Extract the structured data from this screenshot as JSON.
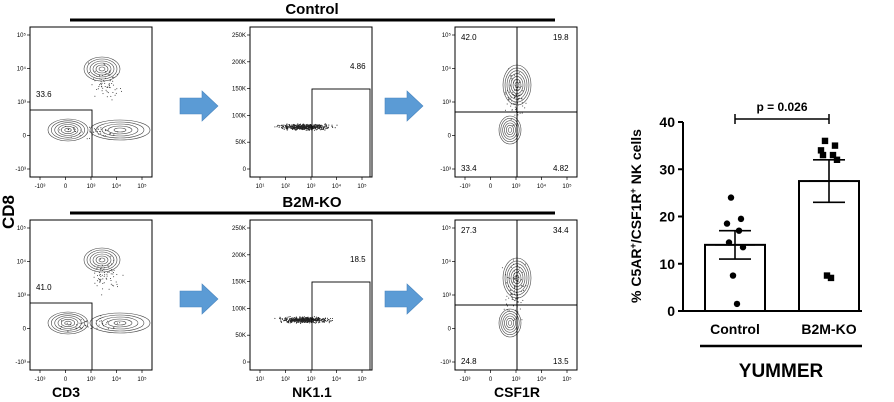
{
  "figure": {
    "y_axis_marker": "CD8",
    "rows": [
      {
        "group_label": "Control",
        "panels": [
          {
            "name": "cd3-cd8-plot",
            "gate_value": "33.6",
            "x_ticks": [
              "-10³",
              "0",
              "10³",
              "10⁴",
              "10⁵"
            ],
            "y_ticks": [
              "10⁵",
              "10⁴",
              "10³",
              "0",
              "-10³"
            ]
          },
          {
            "name": "nk11-plot",
            "gate_value": "4.86",
            "x_ticks": [
              "10¹",
              "10²",
              "10³",
              "10⁴",
              "10⁵"
            ],
            "y_ticks": [
              "250K",
              "200K",
              "150K",
              "100K",
              "50K",
              "0"
            ]
          },
          {
            "name": "csf1r-c5ar-plot",
            "quadrants": {
              "tl": "42.0",
              "tr": "19.8",
              "bl": "33.4",
              "br": "4.82"
            },
            "x_ticks": [
              "-10³",
              "0",
              "10³",
              "10⁴",
              "10⁵"
            ],
            "y_ticks": [
              "10⁵",
              "10⁴",
              "10³",
              "0",
              "-10³"
            ]
          }
        ]
      },
      {
        "group_label": "B2M-KO",
        "panels": [
          {
            "name": "cd3-cd8-plot",
            "gate_value": "41.0",
            "x_ticks": [
              "-10³",
              "0",
              "10³",
              "10⁴",
              "10⁵"
            ],
            "y_ticks": [
              "10⁵",
              "10⁴",
              "10³",
              "0",
              "-10³"
            ]
          },
          {
            "name": "nk11-plot",
            "gate_value": "18.5",
            "x_ticks": [
              "10¹",
              "10²",
              "10³",
              "10⁴",
              "10⁵"
            ],
            "y_ticks": [
              "250K",
              "200K",
              "150K",
              "100K",
              "50K",
              "0"
            ]
          },
          {
            "name": "csf1r-c5ar-plot",
            "quadrants": {
              "tl": "27.3",
              "tr": "34.4",
              "bl": "24.8",
              "br": "13.5"
            },
            "x_ticks": [
              "-10³",
              "0",
              "10³",
              "10⁴",
              "10⁵"
            ],
            "y_ticks": [
              "10⁵",
              "10⁴",
              "10³",
              "0",
              "-10³"
            ]
          }
        ]
      }
    ],
    "x_axis_labels": [
      "CD3",
      "NK1.1",
      "CSF1R"
    ]
  },
  "chart_data": {
    "type": "bar",
    "title": "",
    "xlabel": "YUMMER",
    "ylabel": "% C5AR⁺/CSF1R⁺ NK cells",
    "ylabel_parts": [
      "% C5AR",
      "+",
      "/CSF1R",
      "+",
      " NK cells"
    ],
    "categories": [
      "Control",
      "B2M-KO"
    ],
    "values": [
      14.0,
      27.5
    ],
    "sem": [
      3.0,
      4.5
    ],
    "points": [
      [
        24,
        19.5,
        18.5,
        17,
        14.5,
        13.5,
        7.5,
        1.5
      ],
      [
        36,
        35,
        34,
        33,
        33,
        32,
        7.5,
        7
      ]
    ],
    "ylim": [
      0,
      40
    ],
    "yticks": [
      0,
      10,
      20,
      30,
      40
    ],
    "annotation": "p = 0.026",
    "colors": {
      "bar_fill": "#ffffff",
      "edge": "#000000",
      "arrow": "#5b9bd5"
    }
  }
}
